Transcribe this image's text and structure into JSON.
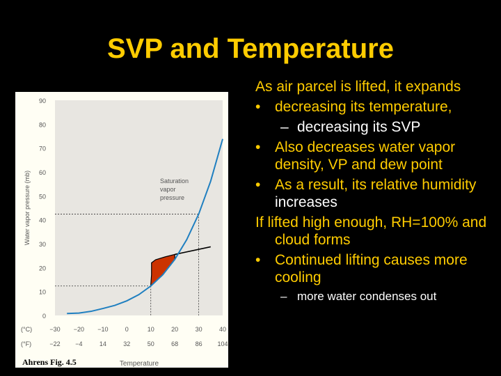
{
  "slide": {
    "title": "SVP and Temperature",
    "text": {
      "p1": "As air parcel is lifted, it expands",
      "b1": "decreasing its temperature,",
      "s1": "decreasing its SVP",
      "b2": "Also decreases water vapor density, VP and dew point",
      "b3_pre": "As a result, its relative humidity ",
      "b3_post": "increases",
      "p2": "If lifted high enough, RH=100% and cloud forms",
      "b4": "Continued lifting causes more cooling",
      "s2": "more water condenses out"
    },
    "markers": {
      "bullet": "•",
      "dash": "–"
    },
    "caption": "Ahrens Fig. 4.5",
    "colors": {
      "title": "#ffcc00",
      "text": "#ffcc00",
      "highlight": "#ffffff",
      "curve": "#1f7fc0",
      "shade": "#cc3300"
    }
  },
  "chart_data": {
    "type": "line",
    "title": "",
    "xlabel": "Temperature",
    "ylabel": "Water vapor pressure (mb)",
    "annotation": "Saturation vapor pressure",
    "x_celsius_ticks": [
      "−30",
      "−20",
      "−10",
      "0",
      "10",
      "20",
      "30",
      "40"
    ],
    "x_fahrenheit_ticks": [
      "−22",
      "−4",
      "14",
      "32",
      "50",
      "68",
      "86",
      "104"
    ],
    "unit_c": "(°C)",
    "unit_f": "(°F)",
    "y_ticks": [
      "0",
      "10",
      "20",
      "30",
      "40",
      "50",
      "60",
      "70",
      "80",
      "90"
    ],
    "xlim": [
      -30,
      40
    ],
    "ylim": [
      0,
      90
    ],
    "series": [
      {
        "x": [
          -25,
          -20,
          -15,
          -10,
          -5,
          0,
          5,
          10,
          15,
          20,
          25,
          30,
          35,
          40
        ],
        "y": [
          0.8,
          1.0,
          1.7,
          2.9,
          4.2,
          6.1,
          8.7,
          12.3,
          17.0,
          23.4,
          31.7,
          42.4,
          56.2,
          73.8
        ]
      }
    ],
    "reference_lines": [
      {
        "x": 10,
        "y": 12.3
      },
      {
        "x": 30,
        "y": 42.4
      }
    ],
    "overlay_line": {
      "x": [
        20,
        35
      ],
      "y": [
        25.5,
        28.7
      ]
    }
  }
}
